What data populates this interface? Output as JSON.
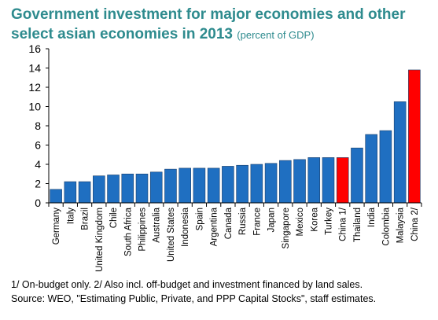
{
  "chart_data": {
    "type": "bar",
    "title": "Government investment for major economies and other select asian economies in 2013",
    "subtitle": "(percent of GDP)",
    "xlabel": "",
    "ylabel": "",
    "ylim": [
      0,
      16
    ],
    "yticks": [
      0,
      2,
      4,
      6,
      8,
      10,
      12,
      14,
      16
    ],
    "grid": false,
    "legend": "none",
    "colors": {
      "default": "#1f6fc1",
      "highlight": "#ff0000"
    },
    "categories": [
      "Germany",
      "Italy",
      "Brazil",
      "United Kingdom",
      "Chile",
      "South Africa",
      "Philippines",
      "Australia",
      "United States",
      "Indonesia",
      "Spain",
      "Argentina",
      "Canada",
      "Russia",
      "France",
      "Japan",
      "Singapore",
      "Mexico",
      "Korea",
      "Turkey",
      "China 1/",
      "Thailand",
      "India",
      "Colombia",
      "Malaysia",
      "China 2/"
    ],
    "values": [
      1.4,
      2.2,
      2.2,
      2.8,
      2.9,
      3.0,
      3.0,
      3.2,
      3.5,
      3.6,
      3.6,
      3.6,
      3.8,
      3.9,
      4.0,
      4.1,
      4.4,
      4.5,
      4.7,
      4.7,
      4.7,
      5.7,
      7.1,
      7.5,
      10.5,
      13.8
    ],
    "highlight": [
      false,
      false,
      false,
      false,
      false,
      false,
      false,
      false,
      false,
      false,
      false,
      false,
      false,
      false,
      false,
      false,
      false,
      false,
      false,
      false,
      true,
      false,
      false,
      false,
      false,
      true
    ]
  },
  "footnotes": {
    "line1": "1/ On-budget only. 2/ Also incl. off-budget and investment financed by land sales.",
    "line2": "Source:  WEO, \"Estimating Public, Private, and PPP Capital Stocks\", staff estimates."
  }
}
